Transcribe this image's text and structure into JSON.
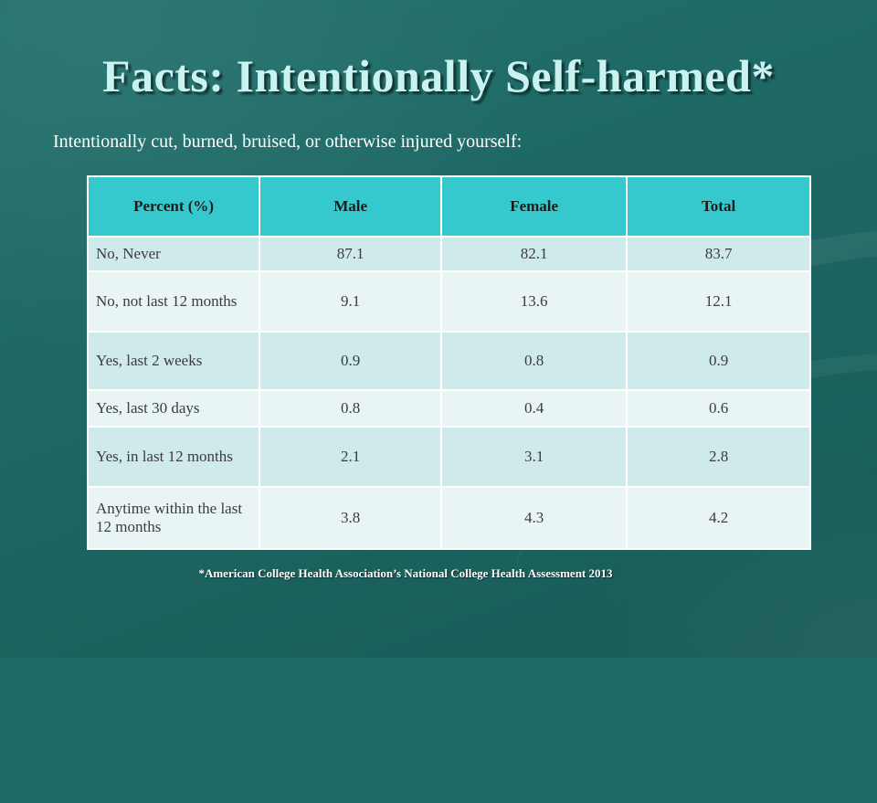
{
  "slide": {
    "title": "Facts: Intentionally Self-harmed*",
    "subtitle": "Intentionally cut, burned, bruised, or otherwise injured yourself:",
    "footnote": "*American College Health Association’s National College Health Assessment 2013"
  },
  "table": {
    "headers": [
      "Percent   (%)",
      "Male",
      "Female",
      "Total"
    ],
    "rows": [
      {
        "label": "No, Never",
        "male": "87.1",
        "female": "82.1",
        "total": "83.7"
      },
      {
        "label": "No, not last 12 months",
        "male": "9.1",
        "female": "13.6",
        "total": "12.1"
      },
      {
        "label": "Yes, last 2 weeks",
        "male": "0.9",
        "female": "0.8",
        "total": "0.9"
      },
      {
        "label": "Yes, last 30 days",
        "male": "0.8",
        "female": "0.4",
        "total": "0.6"
      },
      {
        "label": "Yes, in last 12 months",
        "male": "2.1",
        "female": "3.1",
        "total": "2.8"
      },
      {
        "label": "Anytime within the last 12 months",
        "male": "3.8",
        "female": "4.3",
        "total": "4.2"
      }
    ]
  },
  "colors": {
    "background": "#1f6b68",
    "title_text": "#c9f3f1",
    "header_fill": "#35c8cc",
    "row_fill_odd": "#cfeaea",
    "row_fill_even": "#e9f5f5"
  }
}
